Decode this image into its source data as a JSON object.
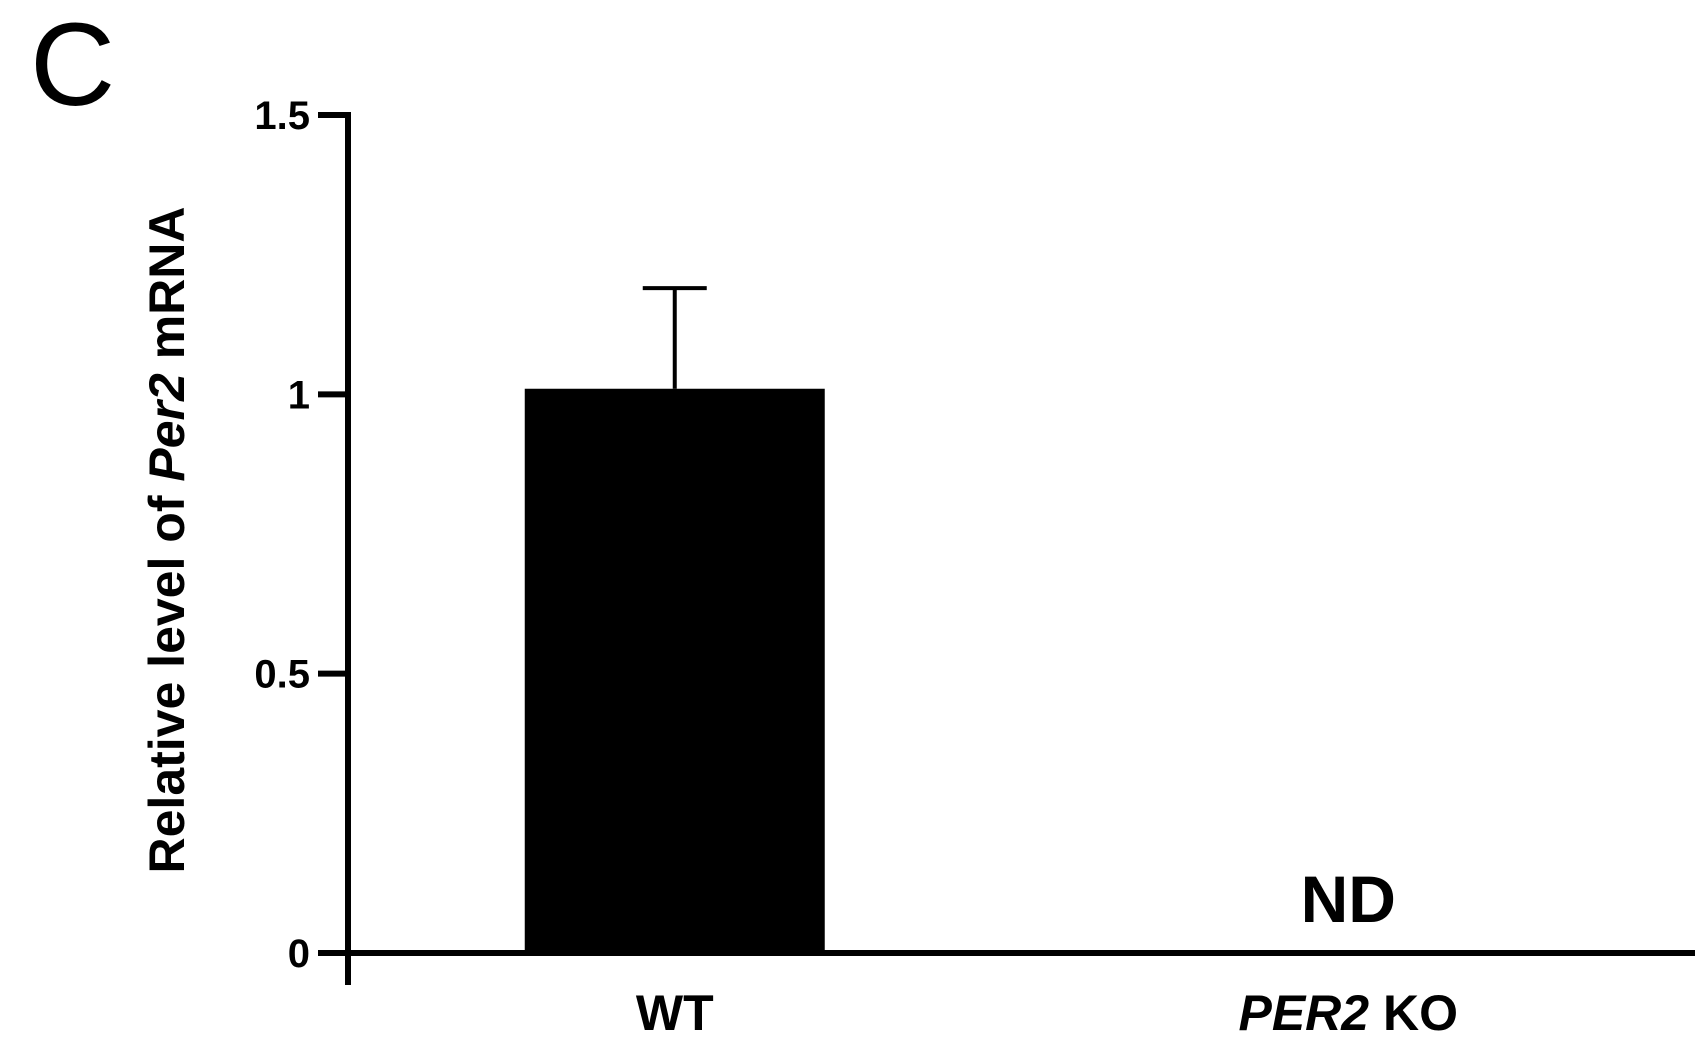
{
  "panel_label": "C",
  "chart_data": {
    "type": "bar",
    "categories": [
      "WT",
      "PER2 KO"
    ],
    "category_labels": [
      {
        "parts": [
          {
            "text": "WT",
            "italic": false
          }
        ]
      },
      {
        "parts": [
          {
            "text": "PER2",
            "italic": true
          },
          {
            "text": " KO",
            "italic": false
          }
        ]
      }
    ],
    "values": [
      1.01,
      null
    ],
    "errors": [
      0.18,
      null
    ],
    "annotations": [
      {
        "category": "PER2 KO",
        "text": "ND"
      }
    ],
    "ylabel": "Relative level of Per2 mRNA",
    "ylabel_parts": [
      {
        "text": "Relative level of ",
        "italic": false
      },
      {
        "text": "Per2",
        "italic": true
      },
      {
        "text": " mRNA",
        "italic": false
      }
    ],
    "yticks": [
      0,
      0.5,
      1,
      1.5
    ],
    "ytick_labels": [
      "0",
      "0.5",
      "1",
      "1.5"
    ],
    "ylim": [
      0,
      1.5
    ],
    "bar_color": "#000000",
    "grid": false,
    "legend": "none"
  }
}
